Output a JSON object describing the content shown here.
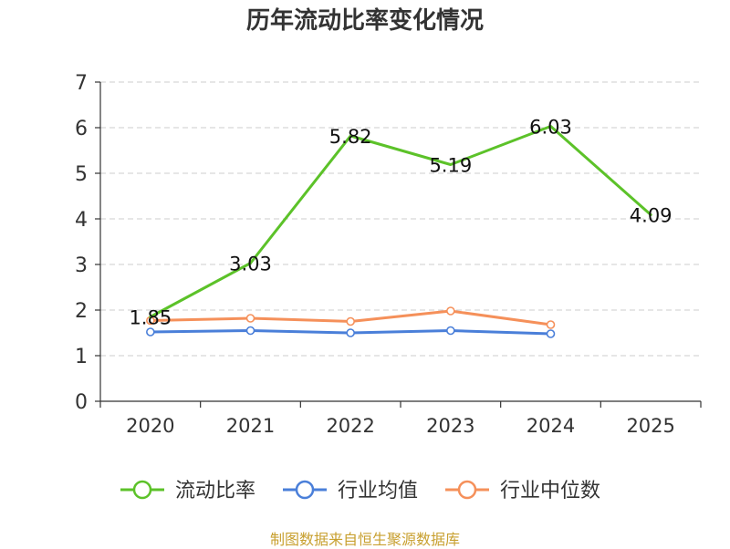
{
  "chart_data": {
    "type": "line",
    "title": "历年流动比率变化情况",
    "categories": [
      "2020",
      "2021",
      "2022",
      "2023",
      "2024",
      "2025"
    ],
    "ylim": [
      0,
      7
    ],
    "yticks": [
      0,
      1,
      2,
      3,
      4,
      5,
      6,
      7
    ],
    "grid": true,
    "legend_position": "bottom",
    "series": [
      {
        "name": "流动比率",
        "color": "#5cc229",
        "values": [
          1.85,
          3.03,
          5.82,
          5.19,
          6.03,
          4.09
        ],
        "labels": true,
        "markers": false
      },
      {
        "name": "行业均值",
        "color": "#4a7fd9",
        "values": [
          1.52,
          1.55,
          1.5,
          1.55,
          1.48,
          null
        ],
        "labels": false,
        "markers": true
      },
      {
        "name": "行业中位数",
        "color": "#f5905a",
        "values": [
          1.77,
          1.82,
          1.75,
          1.98,
          1.68,
          null
        ],
        "labels": false,
        "markers": true
      }
    ]
  },
  "footer": {
    "source": "制图数据来自恒生聚源数据库",
    "color": "#c8a030"
  }
}
